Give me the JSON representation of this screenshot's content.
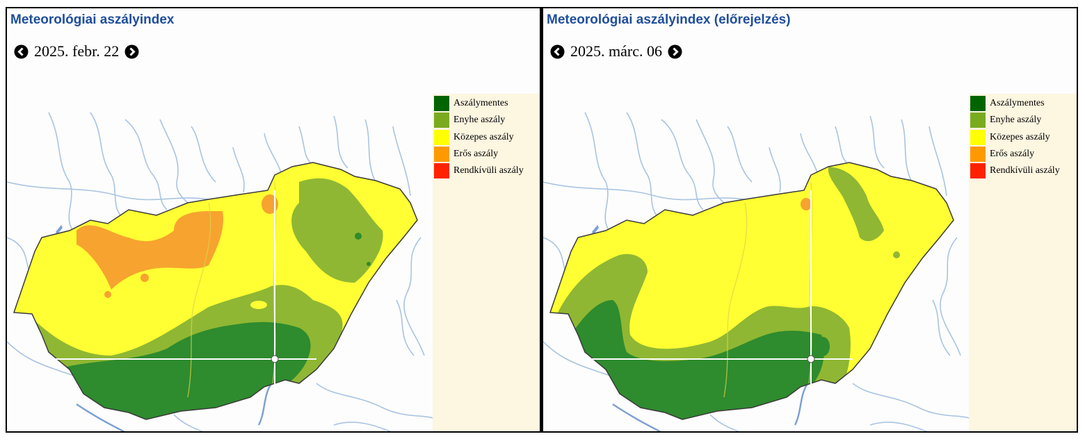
{
  "colors": {
    "title": "#1f4e9c",
    "river": "#a9c4e1",
    "river_major": "#7c9fd2",
    "border": "#3a3a3a",
    "legend_bg": "#fdf6e1"
  },
  "legend": [
    {
      "label": "Aszálymentes",
      "color": "#006400"
    },
    {
      "label": "Enyhe aszály",
      "color": "#7aab1f"
    },
    {
      "label": "Közepes aszály",
      "color": "#ffff00"
    },
    {
      "label": "Erős aszály",
      "color": "#ff9900"
    },
    {
      "label": "Rendkívüli aszály",
      "color": "#ff2200"
    }
  ],
  "panels": [
    {
      "title": "Meteorológiai aszályindex",
      "date": "2025. febr. 22",
      "prev_icon": "chevron-left-circle-icon",
      "next_icon": "chevron-right-circle-icon"
    },
    {
      "title": "Meteorológiai aszályindex (előrejelzés)",
      "date": "2025. márc. 06",
      "prev_icon": "chevron-left-circle-icon",
      "next_icon": "chevron-right-circle-icon"
    }
  ]
}
